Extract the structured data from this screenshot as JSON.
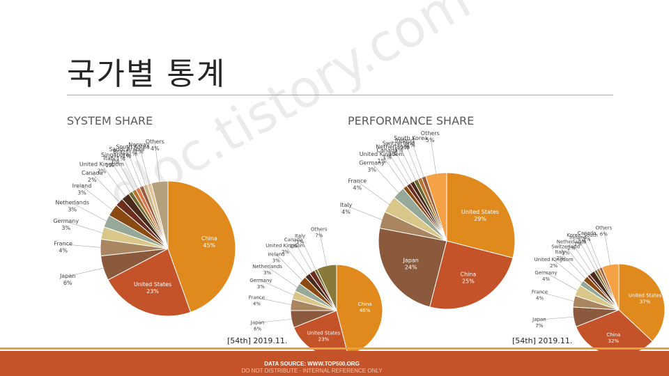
{
  "slide": {
    "title": "국가별 통계",
    "system_share_label": "SYSTEM SHARE",
    "performance_share_label": "PERFORMANCE SHARE",
    "stamp_system": "[54th] 2019.11.",
    "stamp_performance": "[54th] 2019.11.",
    "footer_source": "DATA SOURCE: WWW.TOP500.ORG",
    "footer_note": "DO NOT DISTRIBUTE - INTERNAL REFERENCE ONLY",
    "watermark": "dloc.tistory.com"
  },
  "colors": {
    "accent_orange": "#e08a1e",
    "accent_red": "#c4532a",
    "footer_line": "#e4a33c",
    "text_dark": "#262626"
  },
  "chart_data": [
    {
      "id": "system-share-large",
      "type": "pie",
      "title": "SYSTEM SHARE",
      "slices": [
        {
          "label": "China",
          "percent": "45%",
          "value": 45,
          "color": "#e08a1e"
        },
        {
          "label": "United States",
          "percent": "23%",
          "value": 23,
          "color": "#c4532a"
        },
        {
          "label": "Japan",
          "percent": "6%",
          "value": 6,
          "color": "#8b5a3c"
        },
        {
          "label": "France",
          "percent": "4%",
          "value": 4,
          "color": "#a98560"
        },
        {
          "label": "Germany",
          "percent": "3%",
          "value": 3,
          "color": "#d9c78a"
        },
        {
          "label": "Netherlands",
          "percent": "3%",
          "value": 3,
          "color": "#96a898"
        },
        {
          "label": "Ireland",
          "percent": "3%",
          "value": 3,
          "color": "#8a4a12"
        },
        {
          "label": "Canada",
          "percent": "2%",
          "value": 2,
          "color": "#6b2e1e"
        },
        {
          "label": "United Kingdom",
          "percent": "2%",
          "value": 2,
          "color": "#4a2a1a"
        },
        {
          "label": "Italy",
          "percent": "1%",
          "value": 1,
          "color": "#6d6a30"
        },
        {
          "label": "Singapore",
          "percent": "1%",
          "value": 1,
          "color": "#b87333"
        },
        {
          "label": "Brazil",
          "percent": "1%",
          "value": 1,
          "color": "#d87a4a"
        },
        {
          "label": "Saudi Arabia",
          "percent": "1%",
          "value": 1,
          "color": "#9c5a3a"
        },
        {
          "label": "South Korea",
          "percent": "1%",
          "value": 1,
          "color": "#c9b88a"
        },
        {
          "label": "Norway",
          "percent": "1%",
          "value": 1,
          "color": "#e6c29a"
        },
        {
          "label": "Others",
          "percent": "4%",
          "value": 4,
          "color": "#b5a07c"
        }
      ]
    },
    {
      "id": "system-share-small",
      "type": "pie",
      "slices": [
        {
          "label": "China",
          "percent": "46%",
          "value": 46,
          "color": "#e08a1e"
        },
        {
          "label": "United States",
          "percent": "23%",
          "value": 23,
          "color": "#c4532a"
        },
        {
          "label": "Japan",
          "percent": "6%",
          "value": 6,
          "color": "#8b5a3c"
        },
        {
          "label": "France",
          "percent": "4%",
          "value": 4,
          "color": "#a98560"
        },
        {
          "label": "Germany",
          "percent": "3%",
          "value": 3,
          "color": "#d9c78a"
        },
        {
          "label": "Netherlands",
          "percent": "3%",
          "value": 3,
          "color": "#96a898"
        },
        {
          "label": "Ireland",
          "percent": "3%",
          "value": 3,
          "color": "#8a4a12"
        },
        {
          "label": "United Kingdom",
          "percent": "2%",
          "value": 2,
          "color": "#4a2a1a"
        },
        {
          "label": "Canada",
          "percent": "2%",
          "value": 2,
          "color": "#6b2e1e"
        },
        {
          "label": "Italy",
          "percent": "1%",
          "value": 1,
          "color": "#6d6a30"
        },
        {
          "label": "Others",
          "percent": "7%",
          "value": 7,
          "color": "#8a7a3a"
        }
      ]
    },
    {
      "id": "performance-share-large",
      "type": "pie",
      "title": "PERFORMANCE SHARE",
      "slices": [
        {
          "label": "United States",
          "percent": "29%",
          "value": 29,
          "color": "#e08a1e"
        },
        {
          "label": "China",
          "percent": "25%",
          "value": 25,
          "color": "#c4532a"
        },
        {
          "label": "Japan",
          "percent": "24%",
          "value": 24,
          "color": "#8b5a3c"
        },
        {
          "label": "Italy",
          "percent": "4%",
          "value": 4,
          "color": "#a98560"
        },
        {
          "label": "France",
          "percent": "4%",
          "value": 4,
          "color": "#d9c78a"
        },
        {
          "label": "Germany",
          "percent": "3%",
          "value": 3,
          "color": "#96a898"
        },
        {
          "label": "United Kingdom",
          "percent": "1%",
          "value": 1,
          "color": "#8a4a12"
        },
        {
          "label": "Canada",
          "percent": "1%",
          "value": 1,
          "color": "#6b2e1e"
        },
        {
          "label": "Netherlands",
          "percent": "1%",
          "value": 1,
          "color": "#4a2a1a"
        },
        {
          "label": "Switzerland",
          "percent": "1%",
          "value": 1,
          "color": "#6d6a30"
        },
        {
          "label": "Ireland",
          "percent": "1%",
          "value": 1,
          "color": "#b87333"
        },
        {
          "label": "South Korea",
          "percent": "1%",
          "value": 1,
          "color": "#9c5a3a"
        },
        {
          "label": "Others",
          "percent": "5%",
          "value": 5,
          "color": "#f4a245"
        }
      ]
    },
    {
      "id": "performance-share-small",
      "type": "pie",
      "slices": [
        {
          "label": "United States",
          "percent": "37%",
          "value": 37,
          "color": "#e08a1e"
        },
        {
          "label": "China",
          "percent": "32%",
          "value": 32,
          "color": "#c4532a"
        },
        {
          "label": "Japan",
          "percent": "7%",
          "value": 7,
          "color": "#8b5a3c"
        },
        {
          "label": "France",
          "percent": "4%",
          "value": 4,
          "color": "#a98560"
        },
        {
          "label": "Germany",
          "percent": "4%",
          "value": 4,
          "color": "#d9c78a"
        },
        {
          "label": "United Kingdom",
          "percent": "2%",
          "value": 2,
          "color": "#96a898"
        },
        {
          "label": "Italy",
          "percent": "2%",
          "value": 2,
          "color": "#8a4a12"
        },
        {
          "label": "Switzerland",
          "percent": "1%",
          "value": 1,
          "color": "#6b2e1e"
        },
        {
          "label": "Netherlands",
          "percent": "2%",
          "value": 2,
          "color": "#4a2a1a"
        },
        {
          "label": "Ireland",
          "percent": "1%",
          "value": 1,
          "color": "#6d6a30"
        },
        {
          "label": "Korea, South",
          "percent": "1%",
          "value": 1,
          "color": "#b87333"
        },
        {
          "label": "Canada",
          "percent": "1%",
          "value": 1,
          "color": "#9c5a3a"
        },
        {
          "label": "Others",
          "percent": "6%",
          "value": 6,
          "color": "#f4a245"
        }
      ]
    }
  ]
}
